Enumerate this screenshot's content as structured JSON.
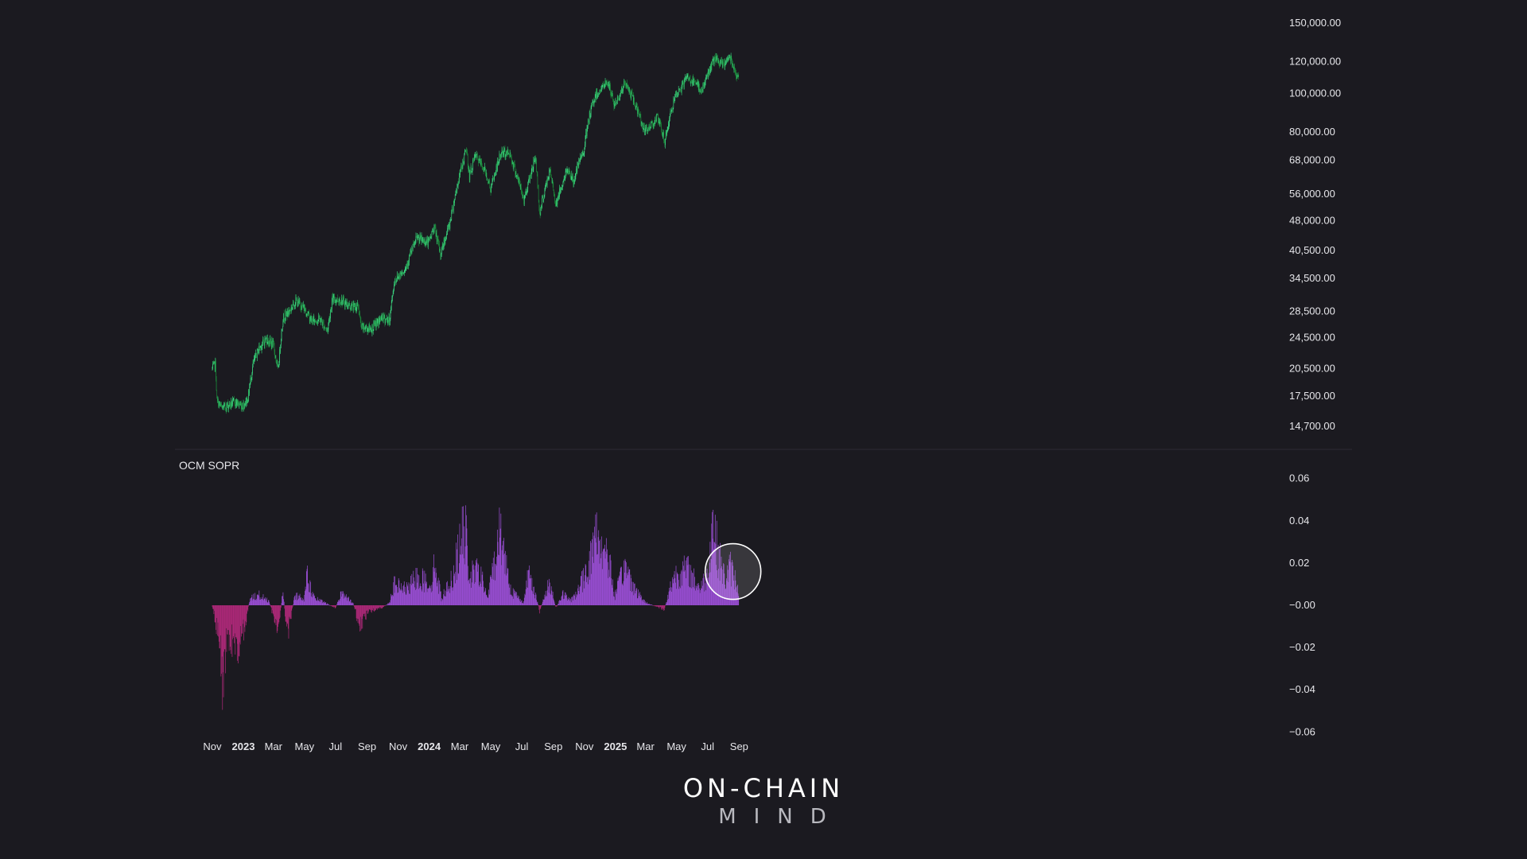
{
  "chart_data": [
    {
      "type": "candlestick",
      "title": "",
      "yscale": "log",
      "ylim": [
        13500,
        160000
      ],
      "xlim": [
        "2022-11-01",
        "2025-09-30"
      ],
      "y_tick_labels": [
        "150,000.00",
        "120,000.00",
        "100,000.00",
        "80,000.00",
        "68,000.00",
        "56,000.00",
        "48,000.00",
        "40,500.00",
        "34,500.00",
        "28,500.00",
        "24,500.00",
        "20,500.00",
        "17,500.00",
        "14,700.00"
      ],
      "y_tick_values": [
        150000,
        120000,
        100000,
        80000,
        68000,
        56000,
        48000,
        40500,
        34500,
        28500,
        24500,
        20500,
        17500,
        14700
      ],
      "grid": false,
      "colors": {
        "up": "#3ddc84",
        "down": "#1b8a3a"
      },
      "series": [
        {
          "price_path": [
            [
              "2022-11-01",
              20500
            ],
            [
              "2022-11-07",
              21000
            ],
            [
              "2022-11-10",
              17000
            ],
            [
              "2022-11-20",
              16300
            ],
            [
              "2022-12-15",
              16900
            ],
            [
              "2022-12-31",
              16550
            ],
            [
              "2023-01-10",
              17300
            ],
            [
              "2023-01-20",
              21000
            ],
            [
              "2023-01-31",
              23000
            ],
            [
              "2023-02-15",
              24300
            ],
            [
              "2023-03-01",
              23500
            ],
            [
              "2023-03-10",
              20200
            ],
            [
              "2023-03-20",
              27500
            ],
            [
              "2023-04-01",
              28500
            ],
            [
              "2023-04-14",
              30300
            ],
            [
              "2023-05-01",
              29000
            ],
            [
              "2023-05-15",
              27000
            ],
            [
              "2023-06-01",
              27200
            ],
            [
              "2023-06-15",
              25500
            ],
            [
              "2023-06-25",
              30500
            ],
            [
              "2023-07-10",
              30500
            ],
            [
              "2023-07-31",
              29300
            ],
            [
              "2023-08-15",
              29300
            ],
            [
              "2023-08-20",
              26000
            ],
            [
              "2023-09-10",
              25800
            ],
            [
              "2023-10-01",
              27500
            ],
            [
              "2023-10-15",
              27000
            ],
            [
              "2023-10-25",
              34000
            ],
            [
              "2023-11-15",
              36500
            ],
            [
              "2023-12-08",
              43500
            ],
            [
              "2023-12-31",
              42300
            ],
            [
              "2024-01-11",
              46500
            ],
            [
              "2024-01-23",
              39500
            ],
            [
              "2024-02-10",
              47000
            ],
            [
              "2024-02-28",
              61000
            ],
            [
              "2024-03-14",
              72500
            ],
            [
              "2024-03-20",
              62000
            ],
            [
              "2024-04-01",
              70000
            ],
            [
              "2024-04-20",
              64000
            ],
            [
              "2024-05-01",
              57500
            ],
            [
              "2024-05-21",
              71000
            ],
            [
              "2024-06-07",
              71000
            ],
            [
              "2024-07-05",
              54000
            ],
            [
              "2024-07-28",
              69500
            ],
            [
              "2024-08-05",
              50000
            ],
            [
              "2024-08-25",
              64000
            ],
            [
              "2024-09-06",
              53000
            ],
            [
              "2024-09-30",
              65000
            ],
            [
              "2024-10-10",
              60000
            ],
            [
              "2024-10-31",
              72500
            ],
            [
              "2024-11-12",
              89000
            ],
            [
              "2024-11-22",
              98500
            ],
            [
              "2024-12-17",
              107000
            ],
            [
              "2024-12-30",
              93000
            ],
            [
              "2025-01-20",
              106000
            ],
            [
              "2025-02-03",
              98000
            ],
            [
              "2025-02-28",
              80000
            ],
            [
              "2025-03-24",
              87000
            ],
            [
              "2025-04-08",
              76000
            ],
            [
              "2025-04-25",
              95000
            ],
            [
              "2025-05-22",
              110000
            ],
            [
              "2025-06-20",
              102000
            ],
            [
              "2025-07-14",
              122000
            ],
            [
              "2025-07-31",
              117500
            ],
            [
              "2025-08-14",
              124000
            ],
            [
              "2025-08-31",
              108000
            ]
          ]
        }
      ]
    },
    {
      "type": "bar",
      "title": "OCM SOPR",
      "ylim": [
        -0.06,
        0.06
      ],
      "xlim": [
        "2022-11-01",
        "2025-09-30"
      ],
      "y_tick_labels": [
        "0.06",
        "0.04",
        "0.02",
        "−0.00",
        "−0.02",
        "−0.04",
        "−0.06"
      ],
      "y_tick_values": [
        0.06,
        0.04,
        0.02,
        0,
        -0.02,
        -0.04,
        -0.06
      ],
      "grid": false,
      "colors": {
        "positive": "#9b4fd6",
        "negative": "#b0297a"
      },
      "annotations": [
        {
          "type": "circle",
          "date": "2025-08-20",
          "value": 0.016
        }
      ],
      "series": [
        {
          "envelope": [
            [
              "2022-11-01",
              -0.001
            ],
            [
              "2022-11-08",
              -0.012
            ],
            [
              "2022-11-15",
              -0.025
            ],
            [
              "2022-11-21",
              -0.051
            ],
            [
              "2022-12-01",
              -0.022
            ],
            [
              "2022-12-15",
              -0.027
            ],
            [
              "2022-12-25",
              -0.03
            ],
            [
              "2023-01-05",
              -0.013
            ],
            [
              "2023-01-14",
              0.005
            ],
            [
              "2023-02-01",
              0.007
            ],
            [
              "2023-02-20",
              0.003
            ],
            [
              "2023-03-10",
              -0.018
            ],
            [
              "2023-03-20",
              0.01
            ],
            [
              "2023-03-28",
              -0.022
            ],
            [
              "2023-04-10",
              0.003
            ],
            [
              "2023-04-14",
              0.007
            ],
            [
              "2023-04-30",
              0.005
            ],
            [
              "2023-05-05",
              0.021
            ],
            [
              "2023-05-20",
              0.005
            ],
            [
              "2023-06-15",
              0.001
            ],
            [
              "2023-07-01",
              -0.002
            ],
            [
              "2023-07-13",
              0.009
            ],
            [
              "2023-08-05",
              0.001
            ],
            [
              "2023-08-18",
              -0.015
            ],
            [
              "2023-09-05",
              -0.004
            ],
            [
              "2023-09-30",
              -0.002
            ],
            [
              "2023-10-15",
              0.002
            ],
            [
              "2023-10-24",
              0.014
            ],
            [
              "2023-11-20",
              0.011
            ],
            [
              "2023-12-08",
              0.02
            ],
            [
              "2024-01-05",
              0.014
            ],
            [
              "2024-01-12",
              0.029
            ],
            [
              "2024-01-25",
              0.005
            ],
            [
              "2024-02-15",
              0.018
            ],
            [
              "2024-03-05",
              0.047
            ],
            [
              "2024-03-13",
              0.049
            ],
            [
              "2024-03-20",
              0.02
            ],
            [
              "2024-04-08",
              0.024
            ],
            [
              "2024-04-25",
              0.005
            ],
            [
              "2024-05-20",
              0.052
            ],
            [
              "2024-06-10",
              0.01
            ],
            [
              "2024-07-05",
              0.002
            ],
            [
              "2024-07-15",
              0.024
            ],
            [
              "2024-07-30",
              0.005
            ],
            [
              "2024-08-05",
              -0.004
            ],
            [
              "2024-08-25",
              0.016
            ],
            [
              "2024-09-06",
              -0.002
            ],
            [
              "2024-09-20",
              0.008
            ],
            [
              "2024-10-05",
              0.003
            ],
            [
              "2024-10-21",
              0.011
            ],
            [
              "2024-11-12",
              0.03
            ],
            [
              "2024-11-22",
              0.05
            ],
            [
              "2024-12-08",
              0.04
            ],
            [
              "2024-12-18",
              0.035
            ],
            [
              "2024-12-30",
              0.006
            ],
            [
              "2025-01-20",
              0.027
            ],
            [
              "2025-02-10",
              0.01
            ],
            [
              "2025-03-01",
              0.002
            ],
            [
              "2025-04-07",
              -0.003
            ],
            [
              "2025-04-25",
              0.02
            ],
            [
              "2025-05-22",
              0.025
            ],
            [
              "2025-06-15",
              0.012
            ],
            [
              "2025-07-01",
              0.02
            ],
            [
              "2025-07-11",
              0.06
            ],
            [
              "2025-07-20",
              0.038
            ],
            [
              "2025-08-05",
              0.017
            ],
            [
              "2025-08-14",
              0.027
            ],
            [
              "2025-08-31",
              0.012
            ]
          ]
        }
      ]
    }
  ],
  "x_axis": {
    "ticks": [
      {
        "label": "Nov",
        "date": "2022-11-01",
        "bold": false
      },
      {
        "label": "2023",
        "date": "2023-01-01",
        "bold": true
      },
      {
        "label": "Mar",
        "date": "2023-03-01",
        "bold": false
      },
      {
        "label": "May",
        "date": "2023-05-01",
        "bold": false
      },
      {
        "label": "Jul",
        "date": "2023-07-01",
        "bold": false
      },
      {
        "label": "Sep",
        "date": "2023-09-01",
        "bold": false
      },
      {
        "label": "Nov",
        "date": "2023-11-01",
        "bold": false
      },
      {
        "label": "2024",
        "date": "2024-01-01",
        "bold": true
      },
      {
        "label": "Mar",
        "date": "2024-03-01",
        "bold": false
      },
      {
        "label": "May",
        "date": "2024-05-01",
        "bold": false
      },
      {
        "label": "Jul",
        "date": "2024-07-01",
        "bold": false
      },
      {
        "label": "Sep",
        "date": "2024-09-01",
        "bold": false
      },
      {
        "label": "Nov",
        "date": "2024-11-01",
        "bold": false
      },
      {
        "label": "2025",
        "date": "2025-01-01",
        "bold": true
      },
      {
        "label": "Mar",
        "date": "2025-03-01",
        "bold": false
      },
      {
        "label": "May",
        "date": "2025-05-01",
        "bold": false
      },
      {
        "label": "Jul",
        "date": "2025-07-01",
        "bold": false
      },
      {
        "label": "Sep",
        "date": "2025-09-01",
        "bold": false
      }
    ]
  },
  "branding": {
    "line1": "ON-CHAIN",
    "line2": "MIND"
  },
  "colors": {
    "background": "#1b1a20",
    "text": "#e6e6ea",
    "divider": "#2c2b33"
  }
}
